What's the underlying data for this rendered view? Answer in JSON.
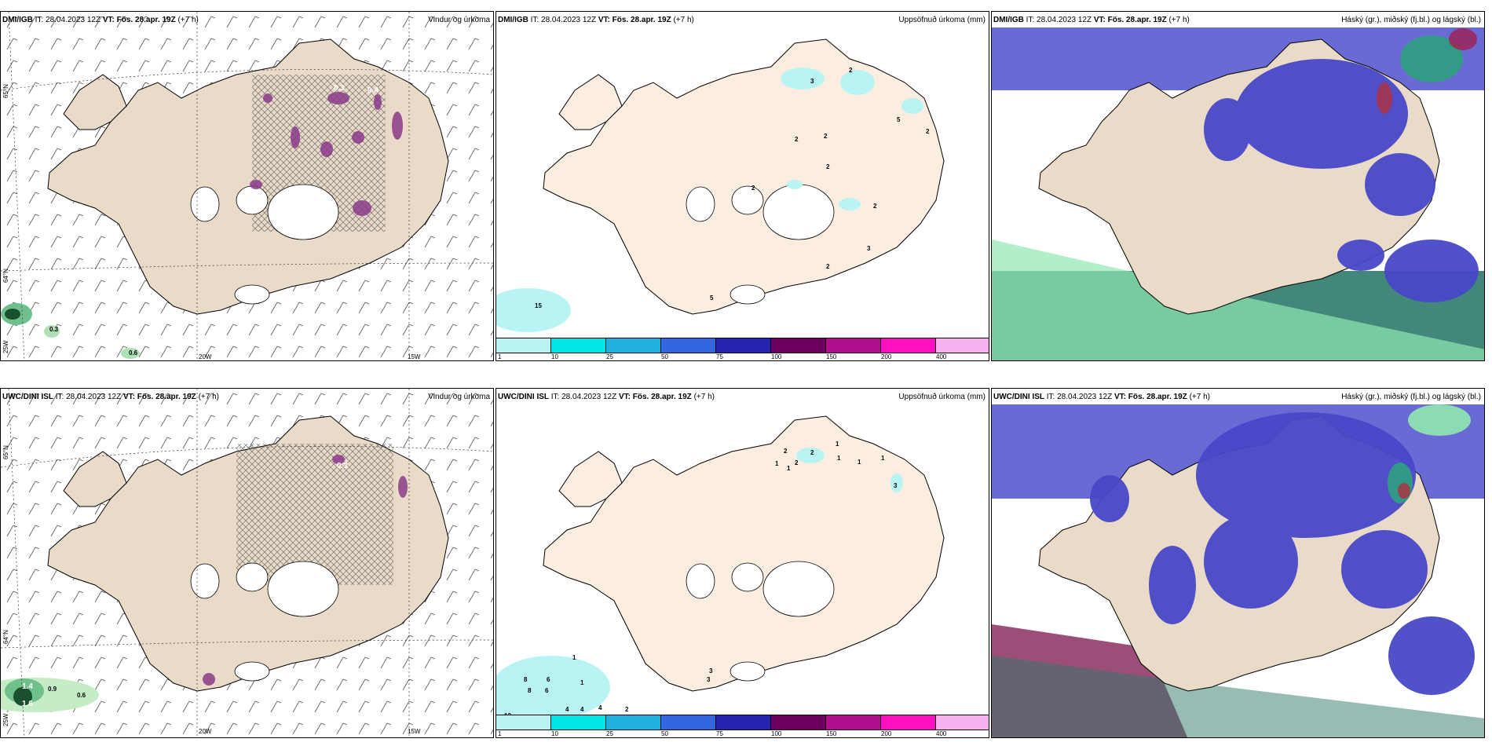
{
  "image_alt": "Iceland weather model comparison: wind and precipitation, accumulated precipitation, cloud cover",
  "rows": [
    {
      "model": "DMI/IGB",
      "it_label": "IT:",
      "it_value": "28.04.2023 12Z",
      "vt_label": "VT:",
      "vt_value": "Fös. 28.apr. 19Z",
      "lead": "(+7 h)",
      "wind_labels": [
        "0.3",
        "0.4",
        "0.3",
        "0.6"
      ],
      "accum_labels": [
        "2",
        "3",
        "2",
        "2",
        "2",
        "5",
        "2",
        "2",
        "2",
        "2",
        "3",
        "5",
        "15"
      ]
    },
    {
      "model": "UWC/DINI ISL",
      "it_label": "IT:",
      "it_value": "28.04.2023 12Z",
      "vt_label": "VT:",
      "vt_value": "Fös. 28.apr. 19Z",
      "lead": "(+7 h)",
      "wind_labels": [
        "0.3",
        "1.4",
        "0.9",
        "0.6",
        "1.6"
      ],
      "accum_labels": [
        "1",
        "1",
        "2",
        "1",
        "2",
        "2",
        "1",
        "1",
        "1",
        "3",
        "3",
        "3",
        "1",
        "1",
        "6",
        "6",
        "8",
        "8",
        "4",
        "4",
        "4",
        "2",
        "12"
      ]
    }
  ],
  "titles": {
    "wind": "Vindur og úrkoma",
    "accum": "Uppsöfnuð úrkoma (mm)",
    "cloud": "Háský (gr.), miðský (fj.bl.) og lágský (bl.)"
  },
  "axis": {
    "lat65": "65°N",
    "lat64": "64°N",
    "lat66": "66°N",
    "lon20": "20W",
    "lon15": "15W",
    "lon25": "25W"
  },
  "colorbar": {
    "ticks": [
      "1",
      "10",
      "25",
      "50",
      "75",
      "100",
      "150",
      "200",
      "400"
    ],
    "colors": [
      "#b8f4f4",
      "#00e5e5",
      "#20b0e0",
      "#3366e0",
      "#2424b0",
      "#700060",
      "#b0108c",
      "#ff10c0",
      "#f6b0f0"
    ]
  },
  "colors": {
    "land": "#eadbc8",
    "land_accum": "#fbeee1",
    "cloud_high": "#5a5ad0",
    "cloud_mid": "#2fa080",
    "cloud_low": "#90e8b0"
  }
}
